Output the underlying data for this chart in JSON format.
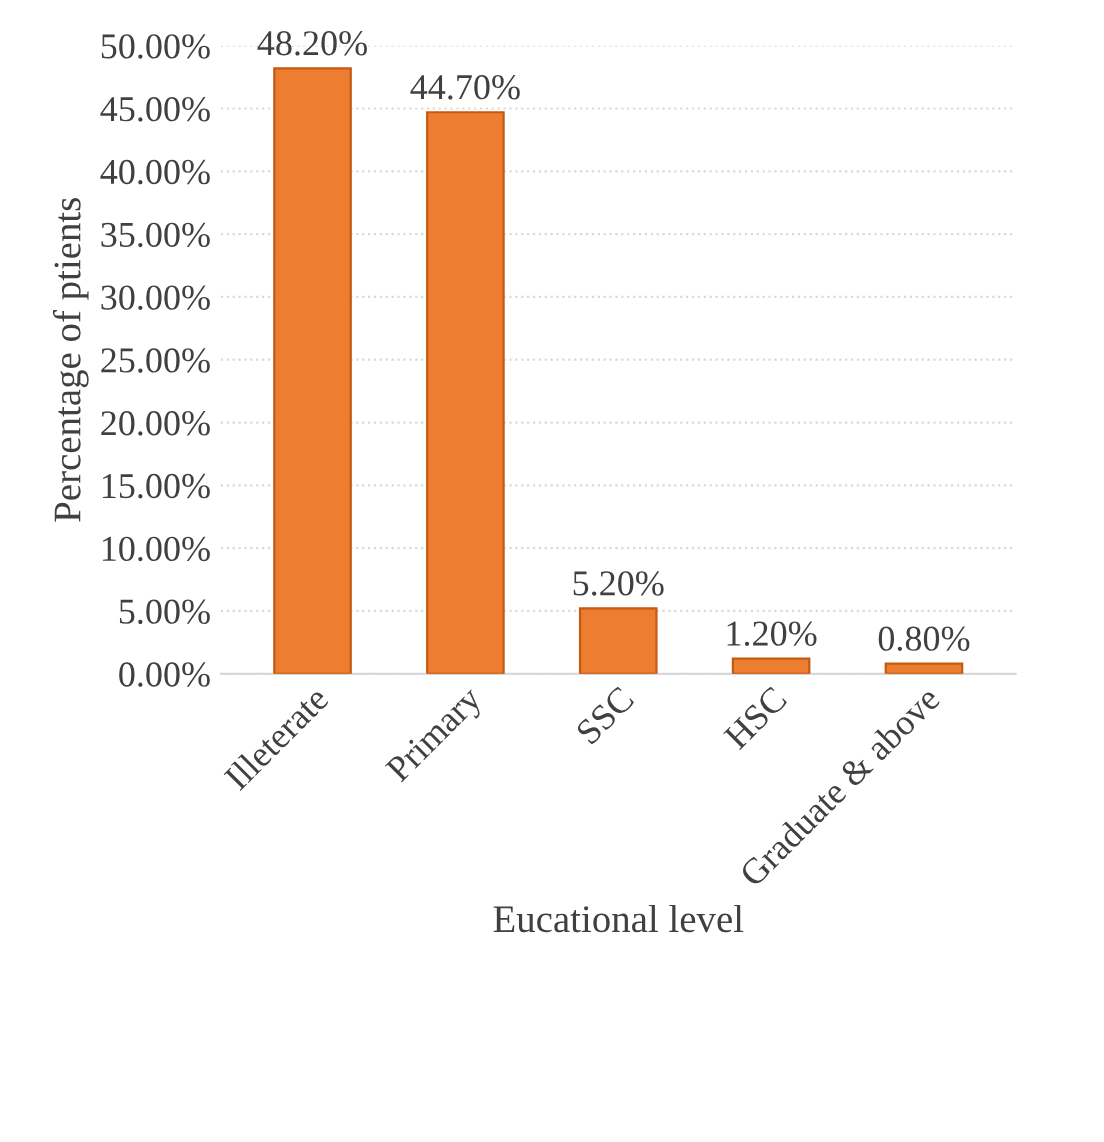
{
  "chart_data": {
    "type": "bar",
    "xlabel": "Eucational level",
    "ylabel": "Percentage of ptients",
    "categories": [
      "Illeterate",
      "Primary",
      "SSC",
      "HSC",
      "Graduate & above"
    ],
    "values": [
      48.2,
      44.7,
      5.2,
      1.2,
      0.8
    ],
    "value_labels": [
      "48.20%",
      "44.70%",
      "5.20%",
      "1.20%",
      "0.80%"
    ],
    "color": "#ed7d31",
    "ylim": [
      0,
      50
    ],
    "yticks": [
      {
        "value": 0,
        "label": "0.00%"
      },
      {
        "value": 5,
        "label": "5.00%"
      },
      {
        "value": 10,
        "label": "10.00%"
      },
      {
        "value": 15,
        "label": "15.00%"
      },
      {
        "value": 20,
        "label": "20.00%"
      },
      {
        "value": 25,
        "label": "25.00%"
      },
      {
        "value": 30,
        "label": "30.00%"
      },
      {
        "value": 35,
        "label": "35.00%"
      },
      {
        "value": 40,
        "label": "40.00%"
      },
      {
        "value": 45,
        "label": "45.00%"
      },
      {
        "value": 50,
        "label": "50.00%"
      }
    ],
    "grid": "y"
  }
}
